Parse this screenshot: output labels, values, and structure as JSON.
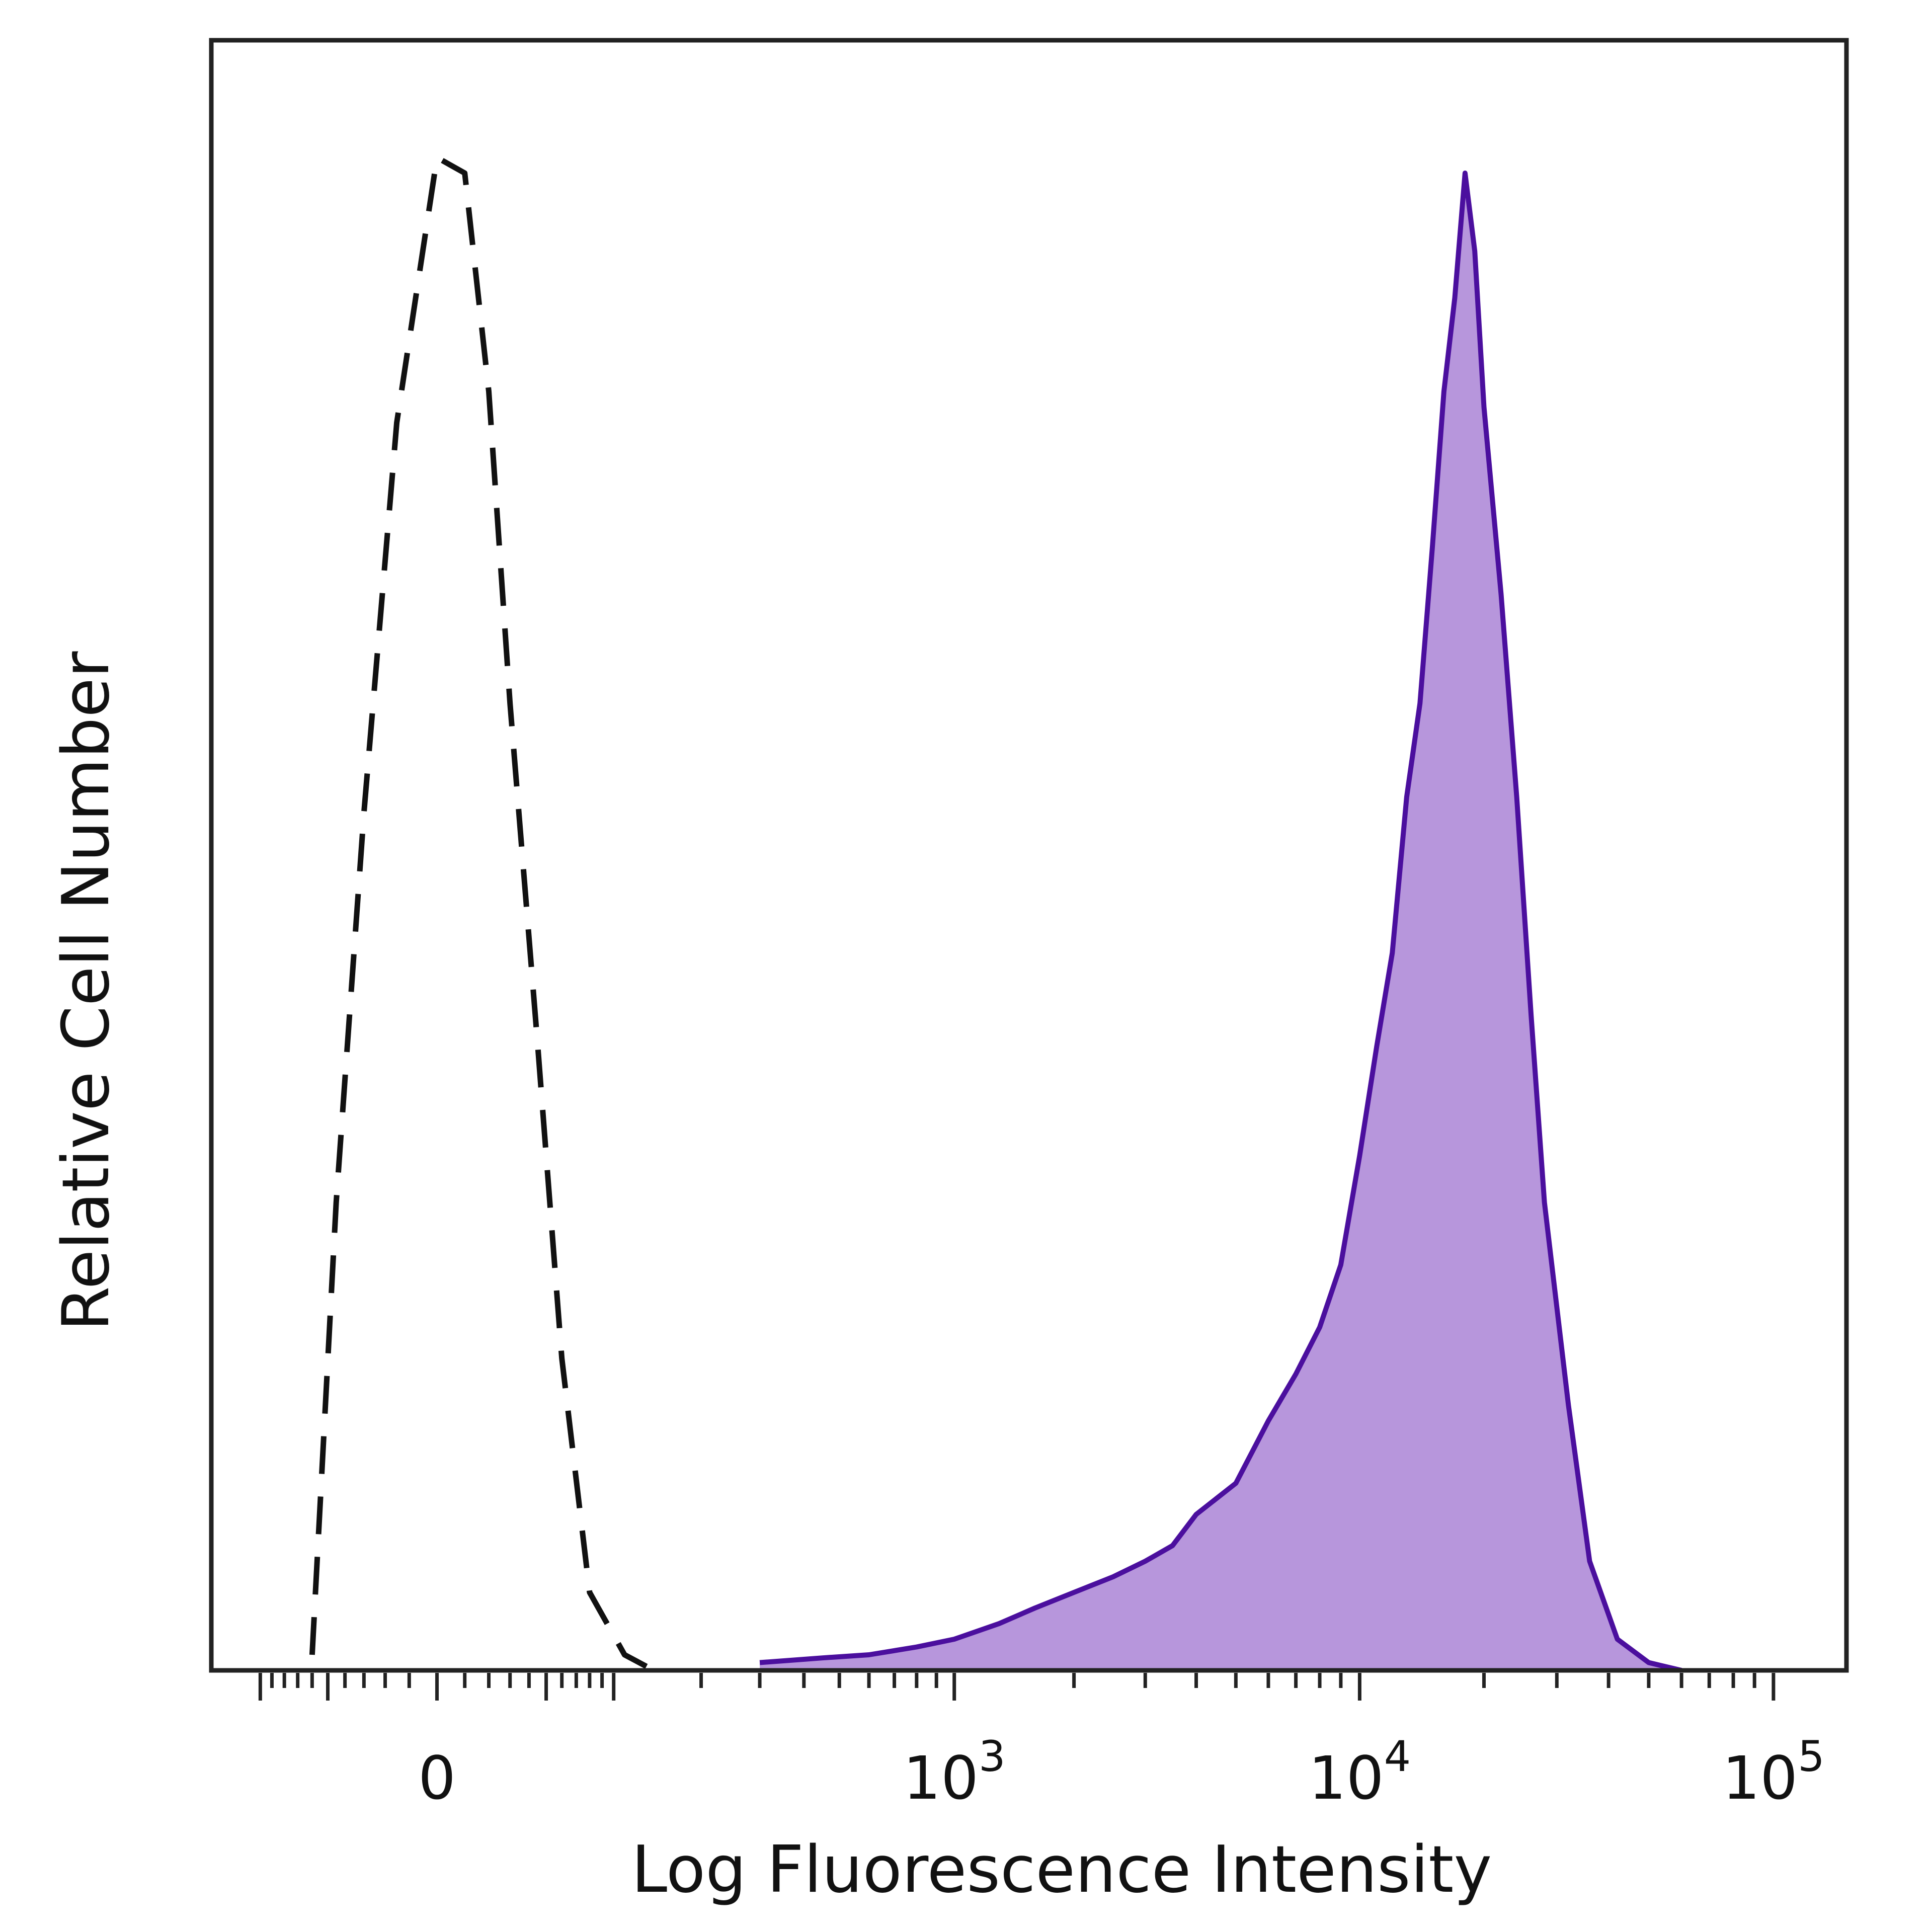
{
  "chart_data": {
    "type": "area",
    "title": "",
    "xlabel": "Log Fluorescence Intensity",
    "ylabel": "Relative Cell Number",
    "x_scale": "biexponential",
    "xlim": [
      -150,
      150000
    ],
    "ylim": [
      0,
      100
    ],
    "grid": false,
    "legend": "none",
    "x_tick_labels": [
      {
        "value": 0,
        "base": "0",
        "exp": ""
      },
      {
        "value": 1000,
        "base": "10",
        "exp": "3"
      },
      {
        "value": 10000,
        "base": "10",
        "exp": "4"
      },
      {
        "value": 100000,
        "base": "10",
        "exp": "5"
      }
    ],
    "series": [
      {
        "style": "dashed",
        "color": "#111111",
        "fill": "none",
        "x": [
          -60,
          -45,
          -30,
          -15,
          0,
          10,
          20,
          30,
          45,
          60,
          80,
          110,
          140
        ],
        "y": [
          1,
          30,
          55,
          80,
          97,
          96,
          82,
          62,
          40,
          20,
          5,
          1,
          0
        ]
      },
      {
        "style": "solid",
        "color": "#4b0f9e",
        "fill": "#b796dc",
        "x": [
          300,
          450,
          600,
          800,
          1000,
          1300,
          1600,
          2000,
          2500,
          3000,
          3500,
          4000,
          5000,
          6000,
          7000,
          8000,
          9000,
          10000,
          11000,
          12000,
          13000,
          14000,
          15000,
          16000,
          17000,
          18000,
          19000,
          20000,
          22000,
          24000,
          26000,
          28000,
          32000,
          36000,
          42000,
          50000,
          60000
        ],
        "y": [
          0.5,
          0.8,
          1,
          1.5,
          2,
          3,
          4,
          5,
          6,
          7,
          8,
          10,
          12,
          16,
          19,
          22,
          26,
          33,
          40,
          46,
          56,
          62,
          72,
          82,
          88,
          96,
          91,
          81,
          69,
          56,
          42,
          30,
          17,
          7,
          2,
          0.5,
          0
        ]
      }
    ]
  },
  "colors": {
    "isotype_line": "#111111",
    "stain_line": "#4b0f9e",
    "stain_fill": "#b796dc",
    "frame": "#222222"
  }
}
